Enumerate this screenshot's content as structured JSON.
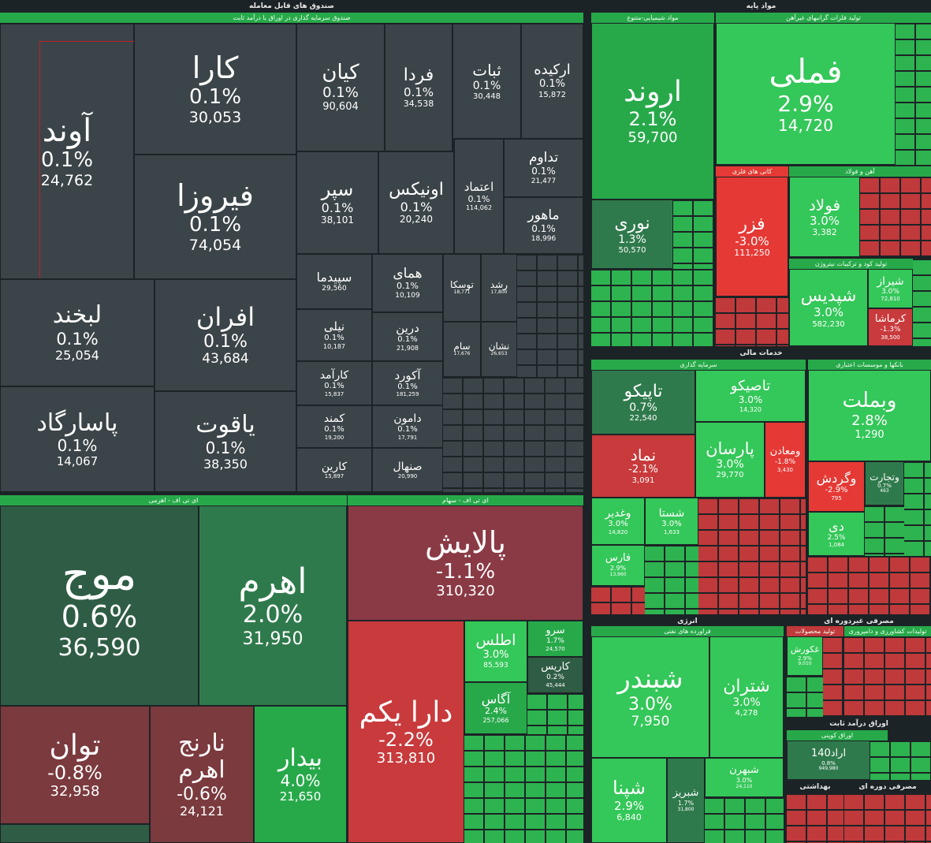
{
  "headers": {
    "funds": "صندوق های قابل معامله",
    "fixed_income": "صندوق سرمایه گذاری در اوراق با درآمد ثابت",
    "etf_stock": "ای تی اف - اهرمی",
    "etf_shares": "ای تی اف - سهام",
    "base_materials": "مواد پایه",
    "chemical": "مواد شیمیایی-متنوع",
    "non_ferrous": "تولید فلزات گرانبهای غیرآهن",
    "metal_ores": "کانی های فلزی",
    "iron_steel": "آهن و فولاد",
    "fertilizer": "تولید کود و ترکیبات نیتروژن",
    "financial": "خدمات مالی",
    "investment": "سرمایه گذاری",
    "banks": "بانکها و موسسات اعتباری",
    "energy": "انرژی",
    "oil_products": "فراورده های نفتی",
    "consumer_goods": "مصرفی غیردوره ای",
    "dairy": "تولید محصولات غذایی",
    "agri": "تولیدات کشاورزی و دامپروری",
    "fixed_income_bonds": "اوراق درآمد ثابت",
    "bonds": "اوراق کوپنی",
    "health": "بهداشتی",
    "durable": "مصرفی دوره ای"
  },
  "tiles": {
    "avand": {
      "name": "آوند",
      "pct": "0.1%",
      "val": "24,762"
    },
    "kara": {
      "name": "کارا",
      "pct": "0.1%",
      "val": "30,053"
    },
    "firooza": {
      "name": "فیروزا",
      "pct": "0.1%",
      "val": "74,054"
    },
    "kian": {
      "name": "کیان",
      "pct": "0.1%",
      "val": "90,604"
    },
    "farda": {
      "name": "فردا",
      "pct": "0.1%",
      "val": "34,538"
    },
    "sabat": {
      "name": "ثبات",
      "pct": "0.1%",
      "val": "30,448"
    },
    "orkide": {
      "name": "ارکیده",
      "pct": "0.1%",
      "val": "15,872"
    },
    "separ": {
      "name": "سپر",
      "pct": "0.1%",
      "val": "38,101"
    },
    "onyx": {
      "name": "اونیکس",
      "pct": "0.1%",
      "val": "20,240"
    },
    "etemad": {
      "name": "اعتماد",
      "pct": "0.1%",
      "val": "114,062"
    },
    "tadavom": {
      "name": "تداوم",
      "pct": "0.1%",
      "val": "21,477"
    },
    "mahoor": {
      "name": "ماهور",
      "pct": "0.1%",
      "val": "18,996"
    },
    "labkhand": {
      "name": "لبخند",
      "pct": "0.1%",
      "val": "25,054"
    },
    "afran": {
      "name": "افران",
      "pct": "0.1%",
      "val": "43,684"
    },
    "pasargad": {
      "name": "پاسارگاد",
      "pct": "0.1%",
      "val": "14,067"
    },
    "yaghoot": {
      "name": "یاقوت",
      "pct": "0.1%",
      "val": "38,350"
    },
    "sepidma": {
      "name": "سپیدما",
      "pct": "0.1%",
      "val": "29,560"
    },
    "homay": {
      "name": "همای",
      "pct": "0.1%",
      "val": "10,109"
    },
    "niloo": {
      "name": "نیلی",
      "pct": "0.1%",
      "val": "10,187"
    },
    "dorin": {
      "name": "درین",
      "pct": "0.1%",
      "val": "21,908"
    },
    "karamad": {
      "name": "کارآمد",
      "pct": "0.1%",
      "val": "15,837"
    },
    "akord": {
      "name": "آکورد",
      "pct": "0.1%",
      "val": "181,259"
    },
    "kamand": {
      "name": "کمند",
      "pct": "0.1%",
      "val": "19,200"
    },
    "damoon": {
      "name": "دامون",
      "pct": "0.1%",
      "val": "17,791"
    },
    "karin": {
      "name": "کارین",
      "pct": "0.1%",
      "val": "15,897"
    },
    "sanhal": {
      "name": "صنهال",
      "pct": "0.1%",
      "val": "20,990"
    },
    "tooska": {
      "name": "توسکا",
      "pct": "0.1%",
      "val": "18,771"
    },
    "roshd": {
      "name": "رشد",
      "pct": "0.1%",
      "val": "17,800"
    },
    "sam": {
      "name": "سام",
      "pct": "0.1%",
      "val": "17,676"
    },
    "neshan": {
      "name": "نشان",
      "pct": "0.1%",
      "val": "26,653"
    },
    "mowj": {
      "name": "موج",
      "pct": "0.6%",
      "val": "36,590"
    },
    "ahrom": {
      "name": "اهرم",
      "pct": "2.0%",
      "val": "31,950"
    },
    "tavan": {
      "name": "توان",
      "pct": "-0.8%",
      "val": "32,958"
    },
    "narenj": {
      "name": "نارنج اهرم",
      "pct": "-0.6%",
      "val": "24,121"
    },
    "bidar": {
      "name": "بیدار",
      "pct": "4.0%",
      "val": "21,650"
    },
    "palayesh": {
      "name": "پالایش",
      "pct": "-1.1%",
      "val": "310,320"
    },
    "dara": {
      "name": "دارا یکم",
      "pct": "-2.2%",
      "val": "313,810"
    },
    "atlas": {
      "name": "اطلس",
      "pct": "3.0%",
      "val": "85,593"
    },
    "sarv": {
      "name": "سرو",
      "pct": "1.7%",
      "val": "24,570"
    },
    "karis": {
      "name": "کاریس",
      "pct": "0.2%",
      "val": "45,444"
    },
    "agas": {
      "name": "آگاس",
      "pct": "2.4%",
      "val": "257,066"
    },
    "arvand": {
      "name": "اروند",
      "pct": "2.1%",
      "val": "59,700"
    },
    "nouri": {
      "name": "نوری",
      "pct": "1.3%",
      "val": "50,570"
    },
    "fameli": {
      "name": "فملی",
      "pct": "2.9%",
      "val": "14,720"
    },
    "faraz": {
      "name": "فزر",
      "pct": "-3.0%",
      "val": "111,250"
    },
    "foolad": {
      "name": "فولاد",
      "pct": "3.0%",
      "val": "3,382"
    },
    "shepdis": {
      "name": "شپدیس",
      "pct": "3.0%",
      "val": "582,230"
    },
    "shiraz": {
      "name": "شیراز",
      "pct": "3.0%",
      "val": "72,810"
    },
    "kermasha": {
      "name": "کرماشا",
      "pct": "-1.3%",
      "val": "38,500"
    },
    "tapiko": {
      "name": "تاپیکو",
      "pct": "0.7%",
      "val": "22,540"
    },
    "tasiko": {
      "name": "تاصیکو",
      "pct": "3.0%",
      "val": "14,320"
    },
    "vabemellat": {
      "name": "وبملت",
      "pct": "2.8%",
      "val": "1,290"
    },
    "nomad": {
      "name": "نماد",
      "pct": "-2.1%",
      "val": "3,091"
    },
    "parsan": {
      "name": "پارسان",
      "pct": "3.0%",
      "val": "29,770"
    },
    "vamaaden": {
      "name": "ومعادن",
      "pct": "-1.8%",
      "val": "3,430"
    },
    "vagardesh": {
      "name": "وگردش",
      "pct": "-2.9%",
      "val": "795"
    },
    "vatejarat": {
      "name": "وتجارت",
      "pct": "0.7%",
      "val": "463"
    },
    "vaghadir": {
      "name": "وغدیر",
      "pct": "3.0%",
      "val": "14,820"
    },
    "shasta": {
      "name": "شستا",
      "pct": "3.0%",
      "val": "1,633"
    },
    "di": {
      "name": "دی",
      "pct": "2.5%",
      "val": "1,084"
    },
    "shebandar": {
      "name": "شبندر",
      "pct": "3.0%",
      "val": "7,950"
    },
    "shetran": {
      "name": "شتران",
      "pct": "3.0%",
      "val": "4,278"
    },
    "shepna": {
      "name": "شپنا",
      "pct": "2.9%",
      "val": "6,840"
    },
    "shebriz": {
      "name": "شبریز",
      "pct": "1.7%",
      "val": "31,800"
    },
    "shbehran": {
      "name": "شبهرن",
      "pct": "3.0%",
      "val": "24,110"
    },
    "faras": {
      "name": "فارس",
      "pct": "2.9%",
      "val": "13,960"
    },
    "ghkoorosh": {
      "name": "غکورش",
      "pct": "2.9%",
      "val": "9,010"
    },
    "arad": {
      "name": "اراد140",
      "pct": "0.8%",
      "val": "949,980"
    }
  }
}
